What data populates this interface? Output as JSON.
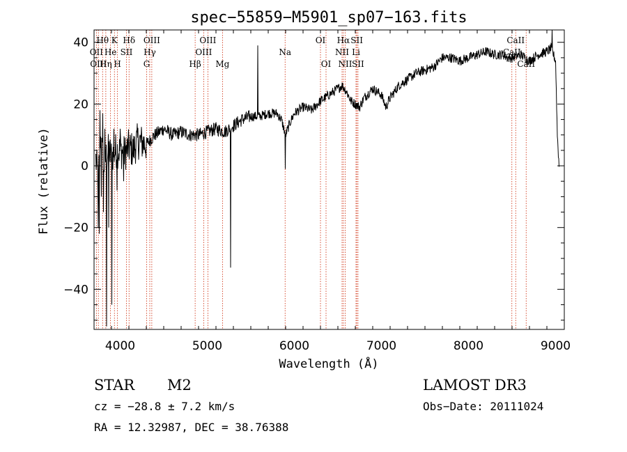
{
  "chart_data": {
    "type": "line",
    "title": "spec−55859−M5901_sp07−163.fits",
    "xlabel": "Wavelength (Å)",
    "ylabel": "Flux (relative)",
    "xlim": [
      3700,
      9100
    ],
    "ylim": [
      -53,
      44
    ],
    "x_ticks": [
      4000,
      5000,
      6000,
      7000,
      8000,
      9000
    ],
    "y_ticks": [
      -40,
      -20,
      0,
      20,
      40
    ],
    "y_tick_labels": [
      "−40",
      "−20",
      "0",
      "20",
      "40"
    ],
    "series": [
      {
        "name": "flux",
        "color": "#000000",
        "anchors": [
          [
            3720,
            2
          ],
          [
            3750,
            -5
          ],
          [
            3770,
            10
          ],
          [
            3790,
            5
          ],
          [
            3810,
            0
          ],
          [
            3840,
            3
          ],
          [
            3870,
            5
          ],
          [
            3900,
            3
          ],
          [
            3950,
            5
          ],
          [
            4000,
            5
          ],
          [
            4050,
            4
          ],
          [
            4100,
            6
          ],
          [
            4150,
            5
          ],
          [
            4200,
            8
          ],
          [
            4300,
            7
          ],
          [
            4400,
            10
          ],
          [
            4500,
            12
          ],
          [
            4600,
            10
          ],
          [
            4700,
            11
          ],
          [
            4800,
            10
          ],
          [
            4900,
            10
          ],
          [
            5000,
            11
          ],
          [
            5100,
            12
          ],
          [
            5200,
            11
          ],
          [
            5300,
            13
          ],
          [
            5400,
            15
          ],
          [
            5500,
            16
          ],
          [
            5600,
            16
          ],
          [
            5700,
            17
          ],
          [
            5800,
            17
          ],
          [
            5850,
            15
          ],
          [
            5900,
            10
          ],
          [
            5950,
            14
          ],
          [
            6000,
            17
          ],
          [
            6100,
            19
          ],
          [
            6200,
            18
          ],
          [
            6300,
            21
          ],
          [
            6400,
            23
          ],
          [
            6500,
            25
          ],
          [
            6550,
            26
          ],
          [
            6600,
            24
          ],
          [
            6650,
            21
          ],
          [
            6700,
            20
          ],
          [
            6750,
            19
          ],
          [
            6800,
            22
          ],
          [
            6900,
            25
          ],
          [
            7000,
            23
          ],
          [
            7050,
            19
          ],
          [
            7100,
            22
          ],
          [
            7200,
            26
          ],
          [
            7300,
            28
          ],
          [
            7400,
            30
          ],
          [
            7500,
            31
          ],
          [
            7600,
            32
          ],
          [
            7700,
            35
          ],
          [
            7800,
            35
          ],
          [
            7900,
            34
          ],
          [
            8000,
            35
          ],
          [
            8100,
            36
          ],
          [
            8200,
            37
          ],
          [
            8300,
            36
          ],
          [
            8400,
            36
          ],
          [
            8450,
            35
          ],
          [
            8500,
            35
          ],
          [
            8600,
            36
          ],
          [
            8700,
            34
          ],
          [
            8800,
            36
          ],
          [
            8900,
            37
          ],
          [
            8950,
            38
          ],
          [
            9000,
            34
          ],
          [
            9020,
            10
          ],
          [
            9040,
            0
          ]
        ],
        "spikes": [
          [
            3750,
            -20
          ],
          [
            3760,
            -22
          ],
          [
            3770,
            18
          ],
          [
            3785,
            -10
          ],
          [
            3800,
            17
          ],
          [
            3810,
            -15
          ],
          [
            3825,
            12
          ],
          [
            3845,
            -52
          ],
          [
            3870,
            -20
          ],
          [
            3905,
            -45
          ],
          [
            3930,
            12
          ],
          [
            3965,
            -8
          ],
          [
            4000,
            12
          ],
          [
            4040,
            -5
          ],
          [
            5270,
            -33
          ],
          [
            5580,
            39
          ],
          [
            5895,
            -1
          ],
          [
            8960,
            44
          ]
        ]
      }
    ],
    "lines": [
      {
        "label": "Hθ",
        "wave": 3798,
        "row": 0
      },
      {
        "label": "OII",
        "wave": 3727,
        "row": 1
      },
      {
        "label": "OIII",
        "wave": 3750,
        "row": 2
      },
      {
        "label": "K",
        "wave": 3934,
        "row": 0
      },
      {
        "label": "He",
        "wave": 3889,
        "row": 1
      },
      {
        "label": "Hη",
        "wave": 3835,
        "row": 2
      },
      {
        "label": "H",
        "wave": 3969,
        "row": 2
      },
      {
        "label": "Hδ",
        "wave": 4102,
        "row": 0
      },
      {
        "label": "SII",
        "wave": 4072,
        "row": 1
      },
      {
        "label": "OIII",
        "wave": 4363,
        "row": 0
      },
      {
        "label": "Hγ",
        "wave": 4340,
        "row": 1
      },
      {
        "label": "G",
        "wave": 4304,
        "row": 2
      },
      {
        "label": "OIII",
        "wave": 5007,
        "row": 0
      },
      {
        "label": "OIII",
        "wave": 4959,
        "row": 1
      },
      {
        "label": "Hβ",
        "wave": 4861,
        "row": 2
      },
      {
        "label": "Mg",
        "wave": 5175,
        "row": 2
      },
      {
        "label": "Na",
        "wave": 5894,
        "row": 1
      },
      {
        "label": "OI",
        "wave": 6300,
        "row": 0
      },
      {
        "label": "OI",
        "wave": 6364,
        "row": 2
      },
      {
        "label": "Hα",
        "wave": 6563,
        "row": 0
      },
      {
        "label": "SII",
        "wave": 6717,
        "row": 0
      },
      {
        "label": "NII",
        "wave": 6548,
        "row": 1
      },
      {
        "label": "Li",
        "wave": 6708,
        "row": 1
      },
      {
        "label": "NII",
        "wave": 6584,
        "row": 2
      },
      {
        "label": "SII",
        "wave": 6731,
        "row": 2
      },
      {
        "label": "CaII",
        "wave": 8542,
        "row": 0
      },
      {
        "label": "CaII",
        "wave": 8498,
        "row": 1
      },
      {
        "label": "CaII",
        "wave": 8662,
        "row": 2
      }
    ]
  },
  "info": {
    "obj_class": "STAR",
    "subclass": "M2",
    "survey": "LAMOST DR3",
    "cz": "cz = −28.8 ± 7.2 km/s",
    "obs_date": "Obs−Date: 20111024",
    "coords": "RA =  12.32987, DEC =  38.76388"
  }
}
